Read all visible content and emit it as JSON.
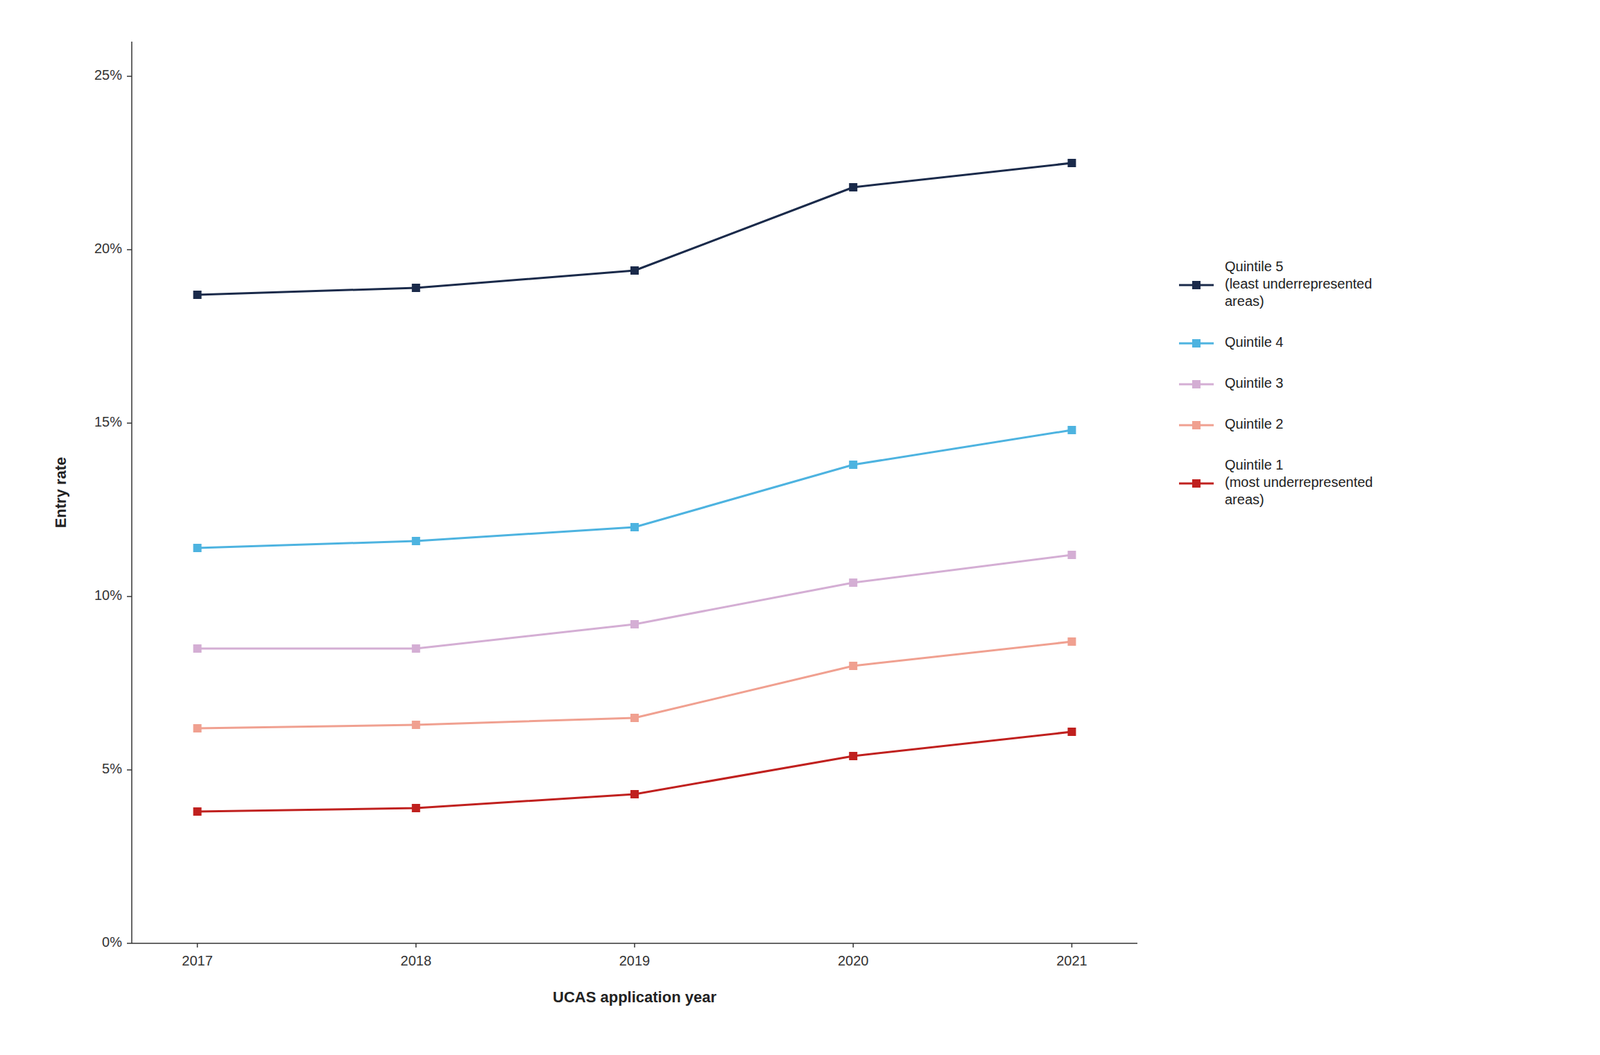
{
  "chart_data": {
    "type": "line",
    "xlabel": "UCAS application year",
    "ylabel": "Entry rate",
    "x": [
      2017,
      2018,
      2019,
      2020,
      2021
    ],
    "xlim": [
      2016.7,
      2021.3
    ],
    "xticks": [
      2017,
      2018,
      2019,
      2020,
      2021
    ],
    "ylim": [
      0,
      0.26
    ],
    "yticks": [
      {
        "value": 0,
        "label": "0%"
      },
      {
        "value": 0.05,
        "label": "5%"
      },
      {
        "value": 0.1,
        "label": "10%"
      },
      {
        "value": 0.15,
        "label": "15%"
      },
      {
        "value": 0.2,
        "label": "20%"
      },
      {
        "value": 0.25,
        "label": "25%"
      }
    ],
    "grid": false,
    "legend": "right",
    "series": [
      {
        "name": "Quintile 5\n(least underrepresented\nareas)",
        "values": [
          0.187,
          0.189,
          0.194,
          0.218,
          0.225
        ],
        "color": "#1a2a4a",
        "marker": "square"
      },
      {
        "name": "Quintile 4",
        "values": [
          0.114,
          0.116,
          0.12,
          0.138,
          0.148
        ],
        "color": "#4db3e0",
        "marker": "square"
      },
      {
        "name": "Quintile 3",
        "values": [
          0.085,
          0.085,
          0.092,
          0.104,
          0.112
        ],
        "color": "#d4aed4",
        "marker": "square"
      },
      {
        "name": "Quintile 2",
        "values": [
          0.062,
          0.063,
          0.065,
          0.08,
          0.087
        ],
        "color": "#f0a090",
        "marker": "square"
      },
      {
        "name": "Quintile 1\n(most underrepresented\nareas)",
        "values": [
          0.038,
          0.039,
          0.043,
          0.054,
          0.061
        ],
        "color": "#c0201e",
        "marker": "square"
      }
    ]
  }
}
